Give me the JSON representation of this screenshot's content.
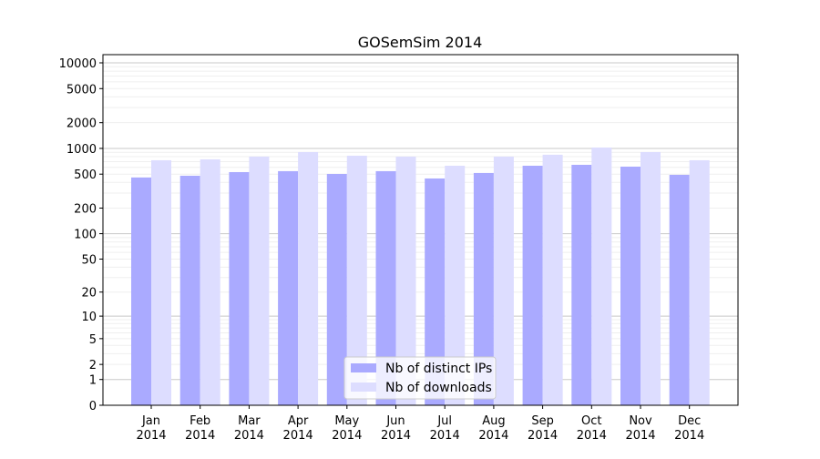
{
  "chart_data": {
    "type": "bar",
    "title": "GOSemSim 2014",
    "xlabel": "",
    "ylabel": "",
    "yscale": "symlog (log10(1+y))",
    "ylim": [
      0,
      12500
    ],
    "grid": true,
    "legend_position": "bottom-center",
    "categories": [
      "Jan\n2014",
      "Feb\n2014",
      "Mar\n2014",
      "Apr\n2014",
      "May\n2014",
      "Jun\n2014",
      "Jul\n2014",
      "Aug\n2014",
      "Sep\n2014",
      "Oct\n2014",
      "Nov\n2014",
      "Dec\n2014"
    ],
    "category_labels": [
      [
        "Jan",
        "2014"
      ],
      [
        "Feb",
        "2014"
      ],
      [
        "Mar",
        "2014"
      ],
      [
        "Apr",
        "2014"
      ],
      [
        "May",
        "2014"
      ],
      [
        "Jun",
        "2014"
      ],
      [
        "Jul",
        "2014"
      ],
      [
        "Aug",
        "2014"
      ],
      [
        "Sep",
        "2014"
      ],
      [
        "Oct",
        "2014"
      ],
      [
        "Nov",
        "2014"
      ],
      [
        "Dec",
        "2014"
      ]
    ],
    "yticks": [
      0,
      1,
      2,
      5,
      10,
      20,
      50,
      100,
      200,
      500,
      1000,
      2000,
      5000,
      10000
    ],
    "ytick_labels": [
      "0",
      "1",
      "2",
      "5",
      "10",
      "20",
      "50",
      "100",
      "200",
      "500",
      "1000",
      "2000",
      "5000",
      "10000"
    ],
    "series": [
      {
        "name": "Nb of distinct IPs",
        "color": "#aaaaff",
        "values": [
          457,
          479,
          528,
          542,
          503,
          542,
          445,
          516,
          627,
          643,
          612,
          491
        ]
      },
      {
        "name": "Nb of downloads",
        "color": "#ddddff",
        "values": [
          727,
          745,
          802,
          906,
          822,
          802,
          627,
          802,
          843,
          1025,
          906,
          727
        ]
      }
    ]
  }
}
